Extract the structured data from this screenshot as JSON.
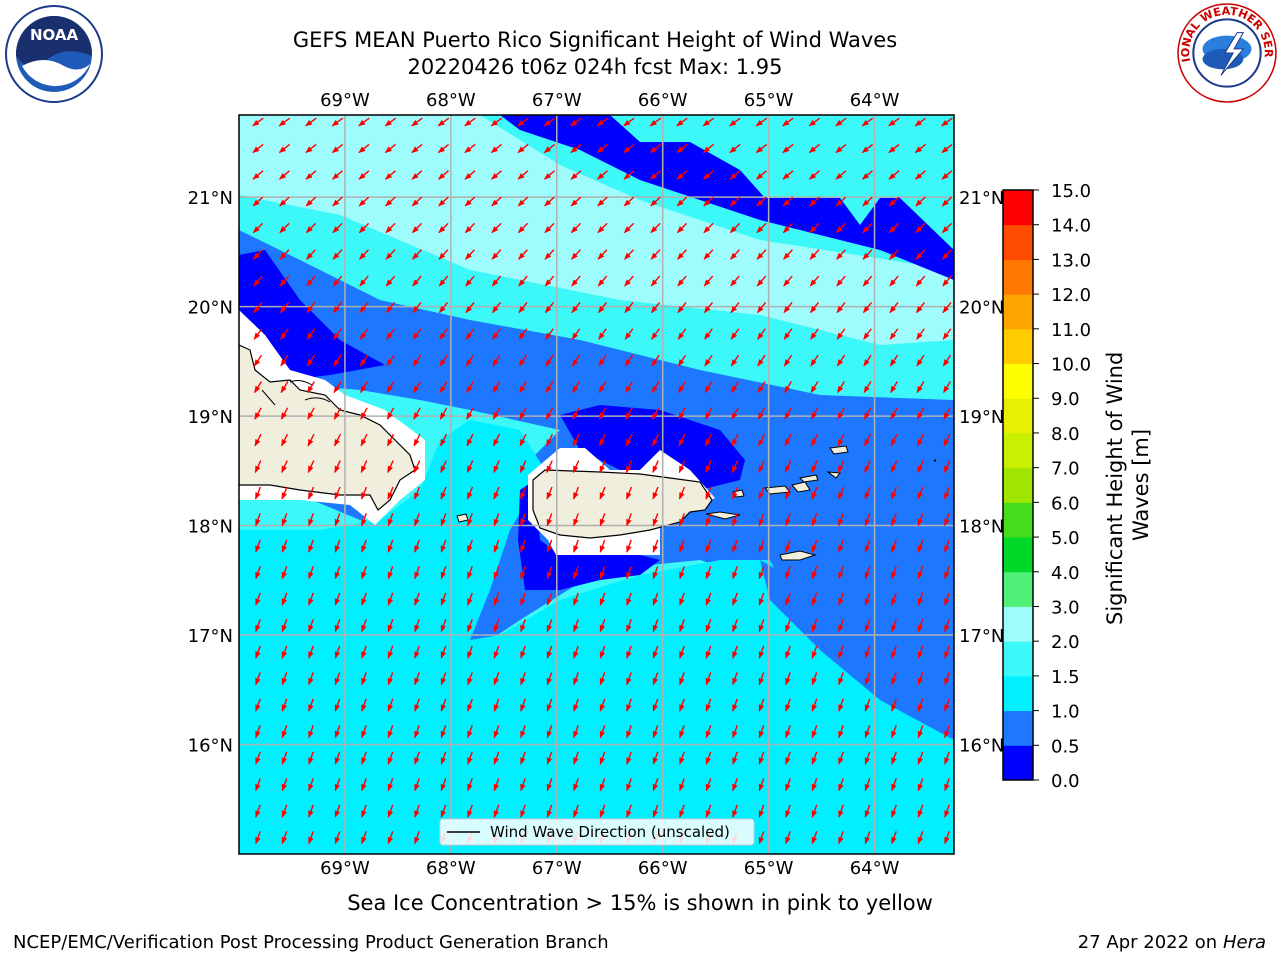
{
  "header": {
    "title_line1": "GEFS MEAN Puerto Rico Significant Height of Wind Waves",
    "title_line2": "20220426 t06z 024h fcst   Max: 1.95"
  },
  "logos": {
    "left": {
      "name": "noaa-logo",
      "text": "NOAA"
    },
    "right": {
      "name": "nws-logo",
      "text": "NATIONAL WEATHER SERVICE"
    }
  },
  "map": {
    "lon_range": [
      -70.0,
      -63.25
    ],
    "lat_range": [
      15.0,
      21.75
    ],
    "lon_ticks": [
      {
        "value": -69,
        "label": "69°W"
      },
      {
        "value": -68,
        "label": "68°W"
      },
      {
        "value": -67,
        "label": "67°W"
      },
      {
        "value": -66,
        "label": "66°W"
      },
      {
        "value": -65,
        "label": "65°W"
      },
      {
        "value": -64,
        "label": "64°W"
      }
    ],
    "lat_ticks": [
      {
        "value": 16,
        "label": "16°N"
      },
      {
        "value": 17,
        "label": "17°N"
      },
      {
        "value": 18,
        "label": "18°N"
      },
      {
        "value": 19,
        "label": "19°N"
      },
      {
        "value": 20,
        "label": "20°N"
      },
      {
        "value": 21,
        "label": "21°N"
      }
    ],
    "legend_label": "Wind Wave Direction (unscaled)",
    "arrow_color": "#ff0000",
    "land_color": "#f0eedc",
    "grid_color": "#b0b0b0"
  },
  "colorbar": {
    "label_line1": "Significant Height of Wind",
    "label_line2": "Waves [m]",
    "ticks": [
      "0.0",
      "0.5",
      "1.0",
      "1.5",
      "2.0",
      "3.0",
      "4.0",
      "5.0",
      "6.0",
      "7.0",
      "8.0",
      "9.0",
      "10.0",
      "11.0",
      "12.0",
      "13.0",
      "14.0",
      "15.0"
    ],
    "colors": [
      "#0000ff",
      "#1e78ff",
      "#00f0ff",
      "#3cf8f8",
      "#9ffcfc",
      "#50f078",
      "#00d828",
      "#46dc1e",
      "#a0e600",
      "#c8f000",
      "#e6f000",
      "#ffff00",
      "#ffcc00",
      "#ffa500",
      "#ff7800",
      "#ff4b00",
      "#ff0000"
    ]
  },
  "note": "Sea Ice Concentration > 15% is shown in pink to yellow",
  "footer": {
    "left": "NCEP/EMC/Verification Post Processing Product Generation Branch",
    "right_prefix": "27 Apr 2022 on ",
    "right_host": "Hera"
  }
}
